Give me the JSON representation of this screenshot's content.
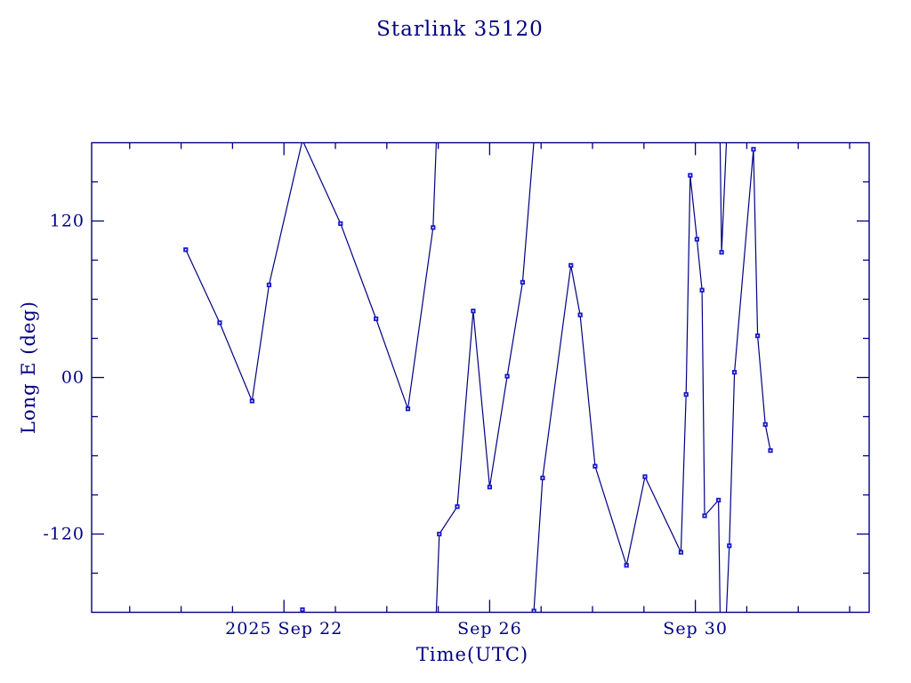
{
  "page": {
    "background_color": "#ffffff"
  },
  "chart_data": {
    "type": "line",
    "title": "Starlink 35120",
    "xlabel": "Time(UTC)",
    "ylabel": "Long E (deg)",
    "x_axis": {
      "unit": "day of 2025 September (values > 30 are October)",
      "range_day": [
        18.26,
        33.38
      ],
      "minor_tick_interval_days": 1,
      "major_ticks": [
        {
          "day": 22,
          "label": "2025 Sep 22"
        },
        {
          "day": 26,
          "label": "Sep 26"
        },
        {
          "day": 30,
          "label": "Sep 30"
        }
      ]
    },
    "y_axis": {
      "unit": "degrees east longitude",
      "range_deg": [
        -180,
        180
      ],
      "minor_tick_interval_deg": 30,
      "major_tick_interval_deg": 120,
      "major_ticks": [
        {
          "value": 120,
          "label": "120"
        },
        {
          "value": 0,
          "label": "00"
        },
        {
          "value": -120,
          "label": "-120"
        }
      ]
    },
    "wrap_at_deg": 180,
    "grid": "off",
    "legend": "none",
    "series": [
      {
        "name": "longitude-east",
        "marker": "square",
        "points_day_deg": [
          [
            20.09,
            98
          ],
          [
            20.75,
            42
          ],
          [
            21.38,
            -18
          ],
          [
            21.71,
            71
          ],
          [
            22.36,
            -178
          ],
          [
            23.1,
            118
          ],
          [
            23.79,
            45
          ],
          [
            24.41,
            -24
          ],
          [
            24.9,
            115
          ],
          [
            25.02,
            -120
          ],
          [
            25.37,
            -99
          ],
          [
            25.68,
            51
          ],
          [
            26.0,
            -84
          ],
          [
            26.34,
            1
          ],
          [
            26.64,
            73
          ],
          [
            26.86,
            -179
          ],
          [
            27.03,
            -77
          ],
          [
            27.58,
            86
          ],
          [
            27.76,
            48
          ],
          [
            28.05,
            -68
          ],
          [
            28.66,
            -144
          ],
          [
            29.02,
            -76
          ],
          [
            29.72,
            -134
          ],
          [
            29.82,
            -13
          ],
          [
            29.9,
            155
          ],
          [
            30.03,
            106
          ],
          [
            30.13,
            67
          ],
          [
            30.18,
            -106
          ],
          [
            30.45,
            -94
          ],
          [
            30.51,
            96
          ],
          [
            30.66,
            -129
          ],
          [
            30.76,
            4
          ],
          [
            31.13,
            175
          ],
          [
            31.21,
            32
          ],
          [
            31.36,
            -36
          ],
          [
            31.46,
            -56
          ]
        ]
      }
    ],
    "colors": {
      "frame": "#000082",
      "line": "#000082",
      "marker": "#1818cf",
      "marker_center": "#ffffff",
      "text": "#000082",
      "background": "#ffffff"
    }
  }
}
